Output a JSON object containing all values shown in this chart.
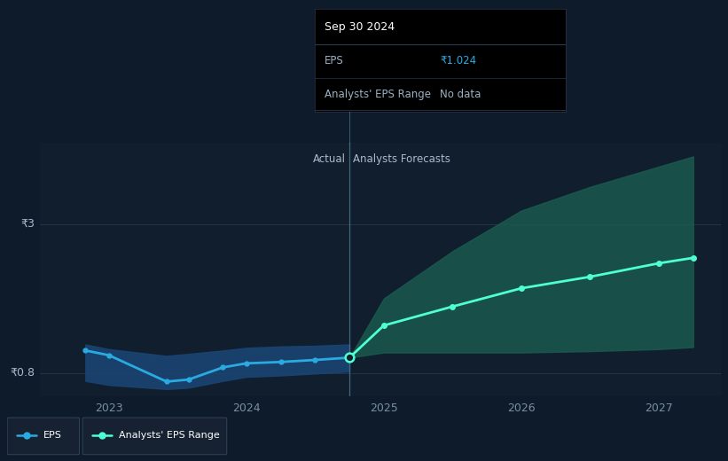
{
  "bg_color": "#0d1b2a",
  "plot_bg_color": "#111e2e",
  "actual_x": [
    2022.83,
    2023.0,
    2023.42,
    2023.58,
    2023.83,
    2024.0,
    2024.25,
    2024.5,
    2024.75
  ],
  "actual_y": [
    1.13,
    1.06,
    0.67,
    0.7,
    0.88,
    0.94,
    0.96,
    0.99,
    1.024
  ],
  "actual_band_upper": [
    1.22,
    1.15,
    1.05,
    1.08,
    1.13,
    1.17,
    1.19,
    1.2,
    1.22
  ],
  "actual_band_lower": [
    0.68,
    0.62,
    0.56,
    0.58,
    0.68,
    0.74,
    0.76,
    0.79,
    0.82
  ],
  "forecast_x": [
    2024.75,
    2025.0,
    2025.5,
    2026.0,
    2026.5,
    2027.0,
    2027.25
  ],
  "forecast_y": [
    1.024,
    1.5,
    1.78,
    2.05,
    2.22,
    2.42,
    2.5
  ],
  "forecast_upper": [
    1.024,
    1.9,
    2.6,
    3.2,
    3.55,
    3.85,
    4.0
  ],
  "forecast_lower": [
    1.024,
    1.1,
    1.1,
    1.1,
    1.12,
    1.15,
    1.18
  ],
  "divider_x": 2024.75,
  "line_color_actual": "#29abe2",
  "line_color_forecast": "#4dffd2",
  "band_color_actual": "#1a4472",
  "band_color_forecast": "#1a5c50",
  "xmin": 2022.5,
  "xmax": 2027.45,
  "ymin": 0.45,
  "ymax": 4.2,
  "ytick_3": 3.0,
  "ytick_08": 0.8,
  "xticks": [
    2023.0,
    2024.0,
    2025.0,
    2026.0,
    2027.0
  ],
  "xtick_labels": [
    "2023",
    "2024",
    "2025",
    "2026",
    "2027"
  ],
  "tooltip_date": "Sep 30 2024",
  "tooltip_eps_label": "EPS",
  "tooltip_eps_value": "₹1.024",
  "tooltip_range_label": "Analysts' EPS Range",
  "tooltip_range_value": "No data",
  "legend_eps_label": "EPS",
  "legend_range_label": "Analysts' EPS Range",
  "actual_label": "Actual",
  "forecast_label": "Analysts Forecasts",
  "tick_color": "#7a8fa0",
  "label_color": "#aabbcc",
  "gridline_color": "#263545"
}
